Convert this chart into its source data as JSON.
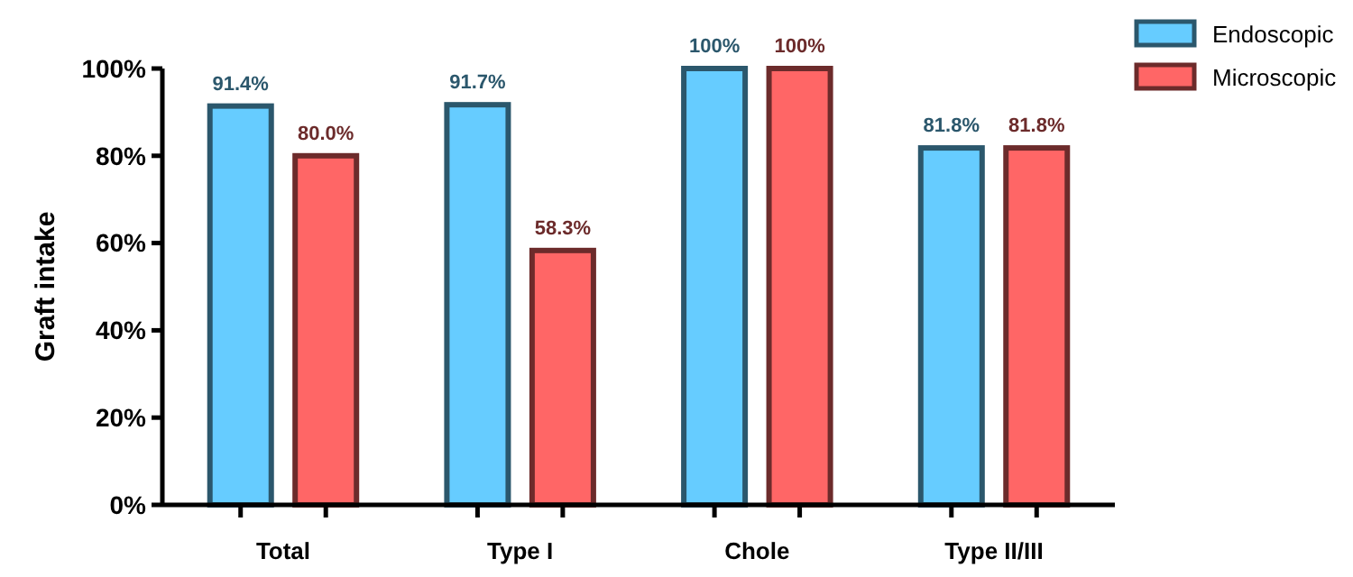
{
  "chart_data": {
    "type": "bar",
    "ylabel": "Graft intake",
    "categories": [
      "Total",
      "Type I",
      "Chole",
      "Type II/III"
    ],
    "series": [
      {
        "name": "Endoscopic",
        "color": "#66ccff",
        "values": [
          91.4,
          91.7,
          100,
          81.8
        ],
        "value_labels": [
          "91.4%",
          "91.7%",
          "100%",
          "81.8%"
        ]
      },
      {
        "name": "Microscopic",
        "color": "#ff6666",
        "values": [
          80.0,
          58.3,
          100,
          81.8
        ],
        "value_labels": [
          "80.0%",
          "58.3%",
          "100%",
          "81.8%"
        ]
      }
    ],
    "ylim": [
      0,
      100
    ],
    "yticks": [
      {
        "value": 0,
        "label": "0%"
      },
      {
        "value": 20,
        "label": "20%"
      },
      {
        "value": 40,
        "label": "40%"
      },
      {
        "value": 60,
        "label": "60%"
      },
      {
        "value": 80,
        "label": "80%"
      },
      {
        "value": 100,
        "label": "100%"
      }
    ],
    "grid": false,
    "legend": "top right"
  }
}
